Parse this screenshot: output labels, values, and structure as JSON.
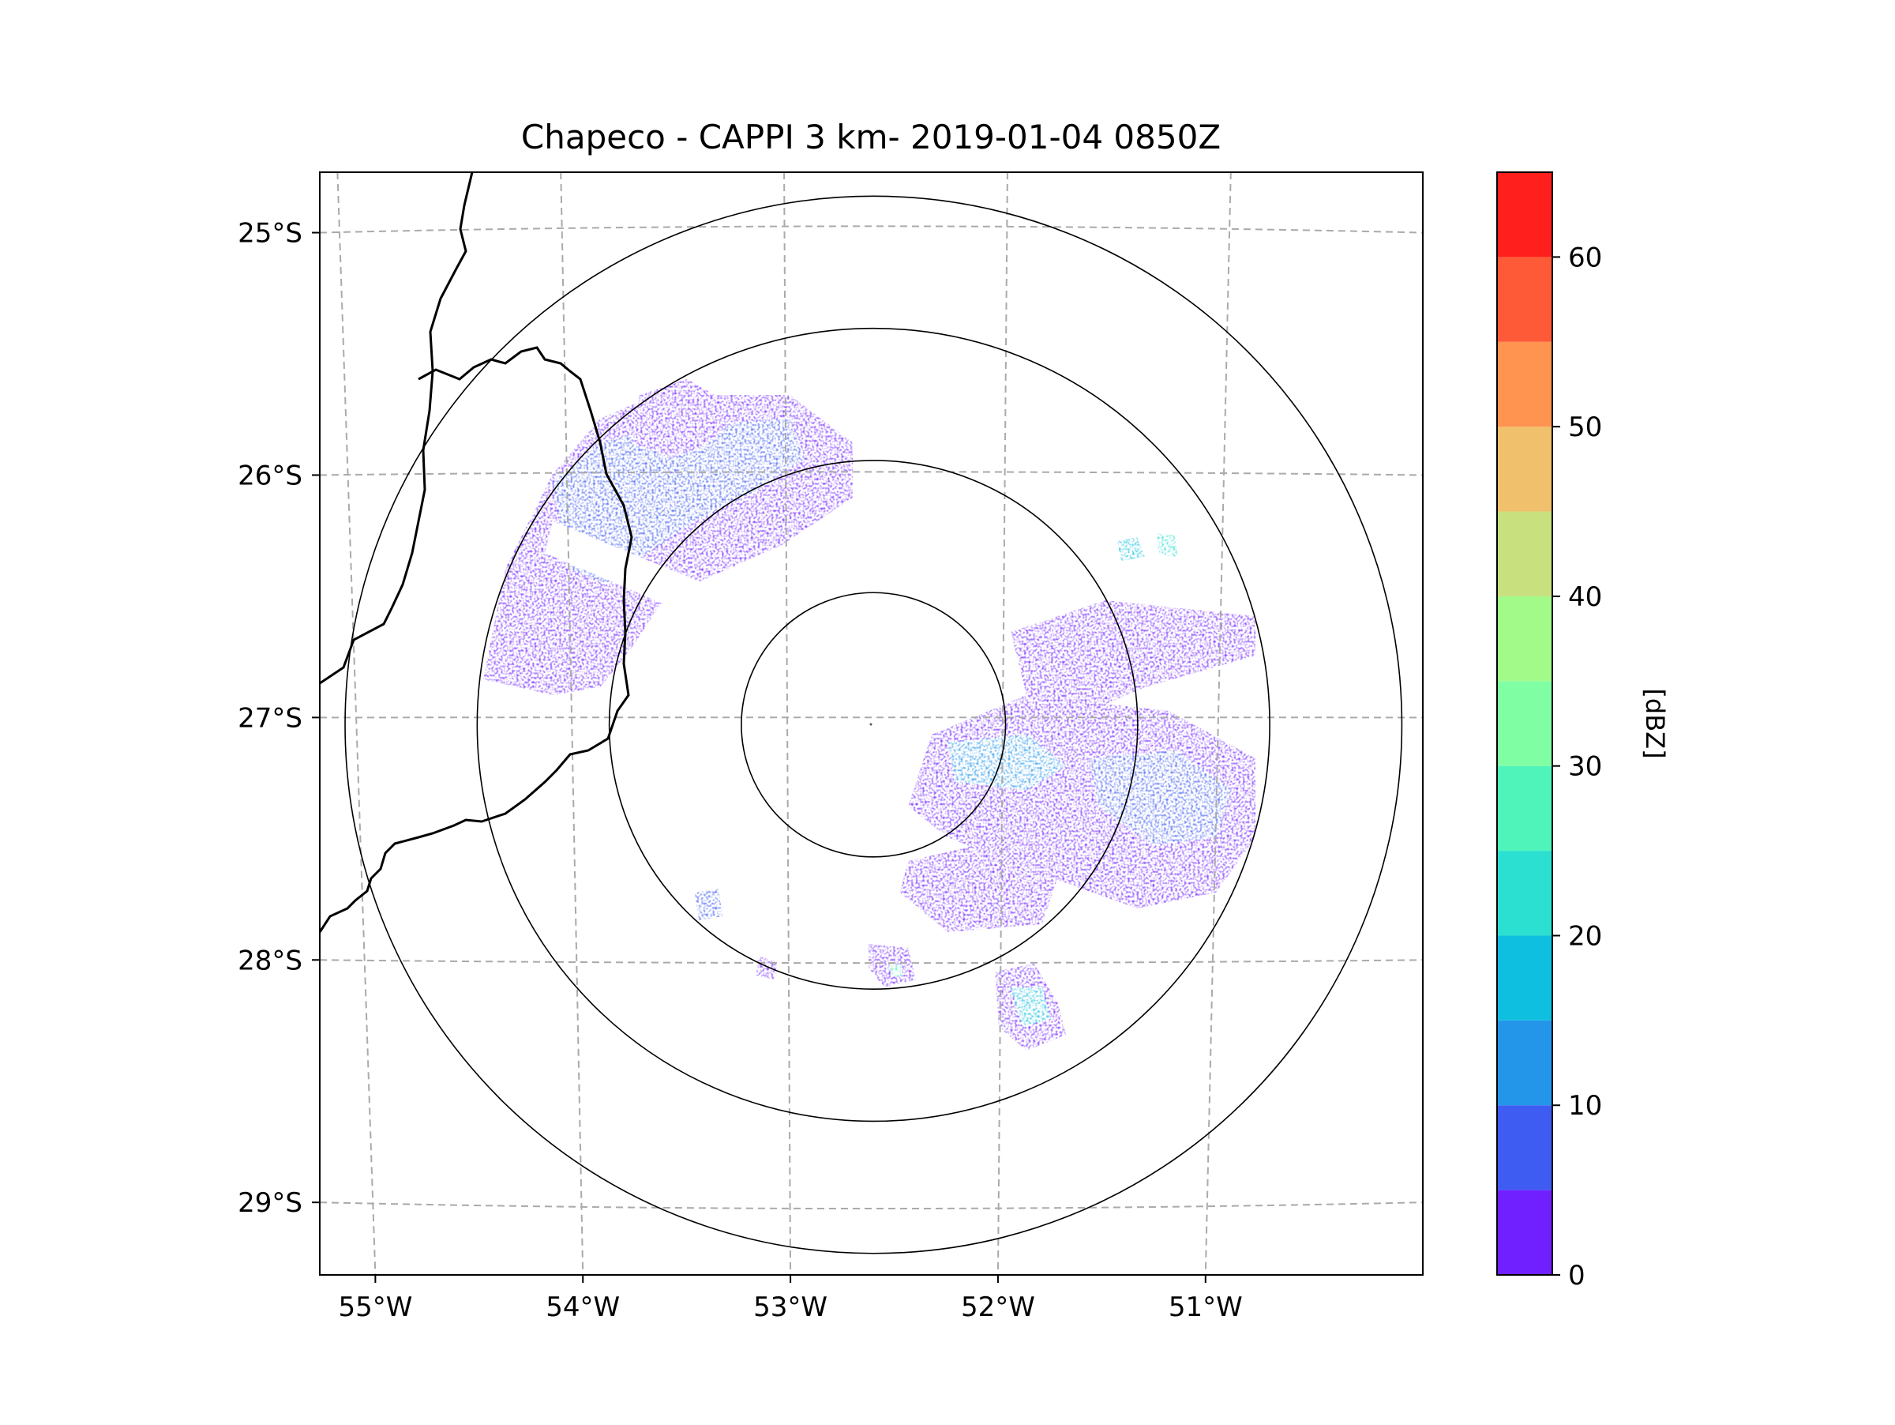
{
  "chart_data": {
    "type": "heatmap",
    "title": "Chapeco - CAPPI 3 km- 2019-01-04 0850Z",
    "projection": "lat-lon map, radar PPI/CAPPI reflectivity",
    "radar_site": {
      "name": "Chapeco",
      "lon": -52.6,
      "lat": -27.03
    },
    "xlim": [
      -55.17,
      -50.05
    ],
    "ylim": [
      -29.27,
      -24.78
    ],
    "x_ticks": [
      {
        "value": -55,
        "label": "55°W"
      },
      {
        "value": -54,
        "label": "54°W"
      },
      {
        "value": -53,
        "label": "53°W"
      },
      {
        "value": -52,
        "label": "52°W"
      },
      {
        "value": -51,
        "label": "51°W"
      }
    ],
    "y_ticks": [
      {
        "value": -25,
        "label": "25°S"
      },
      {
        "value": -26,
        "label": "26°S"
      },
      {
        "value": -27,
        "label": "27°S"
      },
      {
        "value": -28,
        "label": "28°S"
      },
      {
        "value": -29,
        "label": "29°S"
      }
    ],
    "gridlines": true,
    "range_rings_km": [
      50,
      100,
      150,
      200
    ],
    "colorbar": {
      "label": "[dBZ]",
      "range": [
        0,
        65
      ],
      "step": 5,
      "ticks": [
        0,
        10,
        20,
        30,
        40,
        50,
        60
      ],
      "tick_labels": [
        "0",
        "10",
        "20",
        "30",
        "40",
        "50",
        "60"
      ],
      "colors": [
        "#7020ff",
        "#3f5cf2",
        "#2396ea",
        "#0ebfe0",
        "#2ce0d1",
        "#4ff4bb",
        "#80fea3",
        "#a2fa89",
        "#c9e07e",
        "#f0c06c",
        "#ff9350",
        "#ff5a37",
        "#ff1f1d"
      ]
    },
    "echoes": [
      {
        "id": "nw-band",
        "dbz_range": [
          0,
          20
        ],
        "description": "broad weak echo band northwest of radar"
      },
      {
        "id": "east-band",
        "dbz_range": [
          0,
          20
        ],
        "description": "weak echo band east of radar"
      },
      {
        "id": "southeast-cells",
        "dbz_range": [
          0,
          30
        ],
        "description": "scattered cells south-southeast of radar"
      }
    ]
  }
}
